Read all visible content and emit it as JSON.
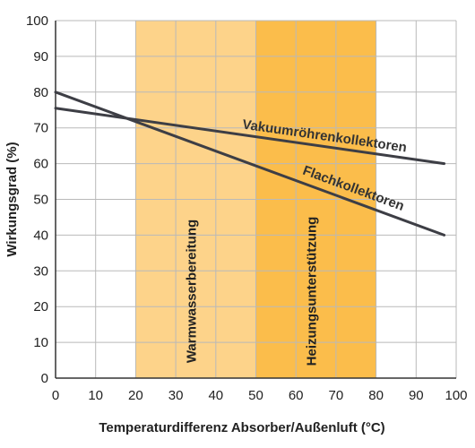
{
  "chart_data": {
    "type": "line",
    "title": "",
    "xlabel": "Temperaturdifferenz Absorber/Außenluft (°C)",
    "ylabel": "Wirkungsgrad (%)",
    "xlim": [
      0,
      100
    ],
    "ylim": [
      0,
      100
    ],
    "x_ticks": [
      "0",
      "10",
      "20",
      "30",
      "40",
      "50",
      "60",
      "70",
      "80",
      "90",
      "100"
    ],
    "y_ticks": [
      "0",
      "10",
      "20",
      "30",
      "40",
      "50",
      "60",
      "70",
      "80",
      "90",
      "100"
    ],
    "grid": true,
    "series": [
      {
        "name": "Vakuumröhrenkollektoren",
        "x": [
          0,
          97
        ],
        "y": [
          75.5,
          60
        ],
        "color": "#3d3e45"
      },
      {
        "name": "Flachkollektoren",
        "x": [
          0,
          97
        ],
        "y": [
          80,
          40
        ],
        "color": "#3d3e45"
      }
    ],
    "bands": [
      {
        "label": "Warmwasserbereitung",
        "x_start": 20,
        "x_end": 50,
        "color": "#fdd38a"
      },
      {
        "label": "Heizungsunterstützung",
        "x_start": 50,
        "x_end": 80,
        "color": "#fbbd4b"
      }
    ]
  }
}
